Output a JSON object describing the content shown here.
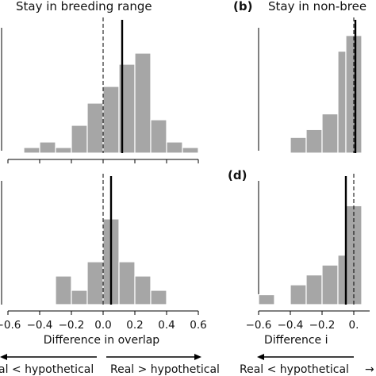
{
  "chart_data": [
    {
      "type": "bar",
      "panel": "a",
      "title": "Stay in breeding range",
      "xlabel": "Difference in overlap",
      "xlim": [
        -0.6,
        0.6
      ],
      "bins": [
        {
          "x0": -0.5,
          "x1": -0.4,
          "count": 1
        },
        {
          "x0": -0.4,
          "x1": -0.3,
          "count": 2
        },
        {
          "x0": -0.3,
          "x1": -0.2,
          "count": 1
        },
        {
          "x0": -0.2,
          "x1": -0.1,
          "count": 5
        },
        {
          "x0": -0.1,
          "x1": 0.0,
          "count": 9
        },
        {
          "x0": 0.0,
          "x1": 0.1,
          "count": 12
        },
        {
          "x0": 0.1,
          "x1": 0.2,
          "count": 16
        },
        {
          "x0": 0.2,
          "x1": 0.3,
          "count": 18
        },
        {
          "x0": 0.3,
          "x1": 0.4,
          "count": 6
        },
        {
          "x0": 0.4,
          "x1": 0.5,
          "count": 2
        },
        {
          "x0": 0.5,
          "x1": 0.6,
          "count": 1
        }
      ],
      "ymax": 24,
      "dashed_line_x": 0.0,
      "solid_line_x": 0.12,
      "xticks": [
        -0.6,
        -0.4,
        -0.2,
        0.0,
        0.2,
        0.4,
        0.6
      ],
      "xtick_labels": [],
      "arrow_left_label": "",
      "arrow_right_label": ""
    },
    {
      "type": "bar",
      "panel": "b",
      "panel_label": "(b)",
      "title": "Stay in non-bree",
      "xlim": [
        -0.6,
        0.1
      ],
      "bins": [
        {
          "x0": -0.4,
          "x1": -0.3,
          "count": 2
        },
        {
          "x0": -0.3,
          "x1": -0.2,
          "count": 3
        },
        {
          "x0": -0.2,
          "x1": -0.1,
          "count": 5
        },
        {
          "x0": -0.1,
          "x1": -0.05,
          "count": 13
        },
        {
          "x0": -0.05,
          "x1": 0.05,
          "count": 15
        }
      ],
      "ymax": 17,
      "dashed_line_x": 0.0,
      "solid_line_x": 0.01,
      "xticks": [],
      "xtick_labels": []
    },
    {
      "type": "bar",
      "panel": "c",
      "xlabel": "Difference in overlap",
      "xlim": [
        -0.6,
        0.6
      ],
      "bins": [
        {
          "x0": -0.3,
          "x1": -0.2,
          "count": 2
        },
        {
          "x0": -0.2,
          "x1": -0.1,
          "count": 1
        },
        {
          "x0": -0.1,
          "x1": 0.0,
          "count": 3
        },
        {
          "x0": 0.0,
          "x1": 0.1,
          "count": 6
        },
        {
          "x0": 0.1,
          "x1": 0.2,
          "count": 3
        },
        {
          "x0": 0.2,
          "x1": 0.3,
          "count": 2
        },
        {
          "x0": 0.3,
          "x1": 0.4,
          "count": 1
        }
      ],
      "ymax": 9,
      "dashed_line_x": 0.0,
      "solid_line_x": 0.05,
      "xticks": [
        -0.6,
        -0.4,
        -0.2,
        0.0,
        0.2,
        0.4,
        0.6
      ],
      "xtick_labels": [
        "−0.6",
        "−0.4",
        "−0.2",
        "0.0",
        "0.2",
        "0.4",
        "0.6"
      ],
      "arrow_left_label": "al < hypothetical",
      "arrow_right_label": "Real > hypothetical"
    },
    {
      "type": "bar",
      "panel": "d",
      "panel_label": "(d)",
      "xlabel": "Difference i",
      "xlim": [
        -0.6,
        0.1
      ],
      "bins": [
        {
          "x0": -0.6,
          "x1": -0.5,
          "count": 1
        },
        {
          "x0": -0.4,
          "x1": -0.3,
          "count": 2
        },
        {
          "x0": -0.3,
          "x1": -0.2,
          "count": 3
        },
        {
          "x0": -0.2,
          "x1": -0.1,
          "count": 4
        },
        {
          "x0": -0.1,
          "x1": -0.05,
          "count": 5
        },
        {
          "x0": -0.05,
          "x1": 0.05,
          "count": 10
        }
      ],
      "ymax": 13,
      "dashed_line_x": 0.0,
      "solid_line_x": -0.05,
      "xticks": [
        -0.6,
        -0.4,
        -0.2,
        0.0
      ],
      "xtick_labels": [
        "−0.6",
        "−0.4",
        "−0.2",
        "0."
      ],
      "arrow_left_label": "Real < hypothetical",
      "arrow_right_label": ""
    }
  ]
}
